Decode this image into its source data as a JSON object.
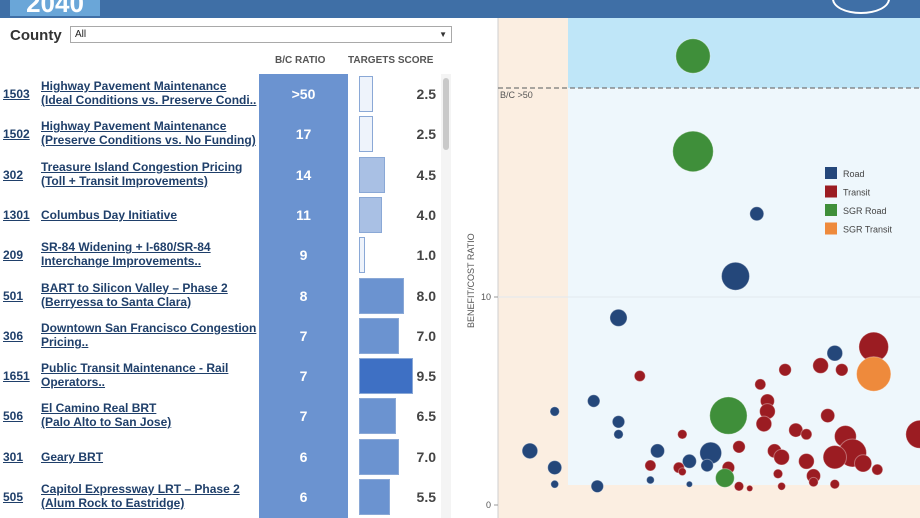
{
  "header": {
    "year_text": "2040"
  },
  "filter": {
    "label": "County",
    "value": "All"
  },
  "table": {
    "col_bc": "B/C RATIO",
    "col_targets": "TARGETS SCORE",
    "rows": [
      {
        "id": "1503",
        "line1": "Highway Pavement Maintenance",
        "line2": "(Ideal Conditions vs. Preserve Condi..",
        "bc": ">50",
        "score": "2.5",
        "score_num": 2.5
      },
      {
        "id": "1502",
        "line1": "Highway Pavement Maintenance",
        "line2": "(Preserve Conditions vs. No Funding)",
        "bc": "17",
        "score": "2.5",
        "score_num": 2.5
      },
      {
        "id": "302",
        "line1": "Treasure Island Congestion Pricing",
        "line2": "(Toll + Transit Improvements)",
        "bc": "14",
        "score": "4.5",
        "score_num": 4.5
      },
      {
        "id": "1301",
        "line1": "Columbus Day Initiative",
        "line2": "",
        "bc": "11",
        "score": "4.0",
        "score_num": 4.0
      },
      {
        "id": "209",
        "line1": "SR-84 Widening + I-680/SR-84",
        "line2": "Interchange Improvements..",
        "bc": "9",
        "score": "1.0",
        "score_num": 1.0
      },
      {
        "id": "501",
        "line1": "BART to Silicon Valley – Phase 2",
        "line2": "(Berryessa to Santa Clara)",
        "bc": "8",
        "score": "8.0",
        "score_num": 8.0
      },
      {
        "id": "306",
        "line1": "Downtown San Francisco Congestion",
        "line2": "Pricing..",
        "bc": "7",
        "score": "7.0",
        "score_num": 7.0
      },
      {
        "id": "1651",
        "line1": "Public Transit Maintenance - Rail",
        "line2": "Operators..",
        "bc": "7",
        "score": "9.5",
        "score_num": 9.5
      },
      {
        "id": "506",
        "line1": "El Camino Real BRT",
        "line2": "(Palo Alto to San Jose)",
        "bc": "7",
        "score": "6.5",
        "score_num": 6.5
      },
      {
        "id": "301",
        "line1": "Geary BRT",
        "line2": "",
        "bc": "6",
        "score": "7.0",
        "score_num": 7.0
      },
      {
        "id": "505",
        "line1": "Capitol Expressway LRT – Phase 2",
        "line2": "(Alum Rock to Eastridge)",
        "bc": "6",
        "score": "5.5",
        "score_num": 5.5
      }
    ]
  },
  "chart_data": {
    "type": "scatter",
    "ylabel": "BENEFIT/COST RATIO",
    "y_ticks": [
      "0",
      "10"
    ],
    "ylim": [
      0,
      12
    ],
    "band_label": "B/C >50",
    "legend": [
      {
        "name": "Road",
        "color": "#24477a"
      },
      {
        "name": "Transit",
        "color": "#9b1c22"
      },
      {
        "name": "SGR Road",
        "color": "#3f8f3a"
      },
      {
        "name": "SGR Transit",
        "color": "#ee8a3c"
      }
    ],
    "points": [
      {
        "cat": "SGR Road",
        "bc": ">50",
        "rank": 0.55,
        "size": 22
      },
      {
        "cat": "SGR Road",
        "bc": 17,
        "rank": 0.55,
        "size": 26
      },
      {
        "cat": "Road",
        "bc": 14,
        "rank": 0.73,
        "size": 9
      },
      {
        "cat": "Road",
        "bc": 11,
        "rank": 0.67,
        "size": 18
      },
      {
        "cat": "Road",
        "bc": 9,
        "rank": 0.34,
        "size": 11
      },
      {
        "cat": "Road",
        "bc": 7.3,
        "rank": 0.95,
        "size": 10
      },
      {
        "cat": "Transit",
        "bc": 7.6,
        "rank": 1.06,
        "size": 19
      },
      {
        "cat": "SGR Transit",
        "bc": 7,
        "rank": 1.26,
        "size": 25
      },
      {
        "cat": "SGR Transit",
        "bc": 6.3,
        "rank": 1.06,
        "size": 22
      },
      {
        "cat": "Transit",
        "bc": 6.7,
        "rank": 0.91,
        "size": 10
      },
      {
        "cat": "Transit",
        "bc": 6.2,
        "rank": 0.4,
        "size": 7
      },
      {
        "cat": "Transit",
        "bc": 6.5,
        "rank": 0.81,
        "size": 8
      },
      {
        "cat": "Transit",
        "bc": 6.5,
        "rank": 0.97,
        "size": 8
      },
      {
        "cat": "Transit",
        "bc": 5.8,
        "rank": 0.74,
        "size": 7
      },
      {
        "cat": "Road",
        "bc": 5.0,
        "rank": 0.27,
        "size": 8
      },
      {
        "cat": "Road",
        "bc": 4.5,
        "rank": 0.16,
        "size": 6
      },
      {
        "cat": "SGR Road",
        "bc": 4.3,
        "rank": 0.65,
        "size": 24
      },
      {
        "cat": "Transit",
        "bc": 5.0,
        "rank": 0.76,
        "size": 9
      },
      {
        "cat": "Transit",
        "bc": 4.5,
        "rank": 0.76,
        "size": 10
      },
      {
        "cat": "Transit",
        "bc": 4.3,
        "rank": 0.93,
        "size": 9
      },
      {
        "cat": "Road",
        "bc": 4.0,
        "rank": 0.34,
        "size": 8
      },
      {
        "cat": "Road",
        "bc": 3.4,
        "rank": 0.34,
        "size": 6
      },
      {
        "cat": "Transit",
        "bc": 3.4,
        "rank": 0.52,
        "size": 6
      },
      {
        "cat": "Transit",
        "bc": 3.9,
        "rank": 0.75,
        "size": 10
      },
      {
        "cat": "Transit",
        "bc": 3.6,
        "rank": 0.84,
        "size": 9
      },
      {
        "cat": "Transit",
        "bc": 3.4,
        "rank": 0.87,
        "size": 7
      },
      {
        "cat": "Transit",
        "bc": 3.3,
        "rank": 0.98,
        "size": 14
      },
      {
        "cat": "Transit",
        "bc": 3.4,
        "rank": 1.19,
        "size": 18
      },
      {
        "cat": "Road",
        "bc": 2.6,
        "rank": 0.09,
        "size": 10
      },
      {
        "cat": "Road",
        "bc": 2.6,
        "rank": 0.45,
        "size": 9
      },
      {
        "cat": "Road",
        "bc": 2.5,
        "rank": 0.6,
        "size": 14
      },
      {
        "cat": "Road",
        "bc": 2.1,
        "rank": 0.54,
        "size": 9
      },
      {
        "cat": "Road",
        "bc": 1.9,
        "rank": 0.59,
        "size": 8
      },
      {
        "cat": "Transit",
        "bc": 2.8,
        "rank": 0.68,
        "size": 8
      },
      {
        "cat": "Transit",
        "bc": 2.6,
        "rank": 0.78,
        "size": 9
      },
      {
        "cat": "Transit",
        "bc": 2.3,
        "rank": 0.8,
        "size": 10
      },
      {
        "cat": "Transit",
        "bc": 2.5,
        "rank": 1.0,
        "size": 18
      },
      {
        "cat": "Transit",
        "bc": 2.3,
        "rank": 0.95,
        "size": 15
      },
      {
        "cat": "Transit",
        "bc": 2.0,
        "rank": 1.03,
        "size": 11
      },
      {
        "cat": "Transit",
        "bc": 1.9,
        "rank": 0.43,
        "size": 7
      },
      {
        "cat": "Transit",
        "bc": 1.8,
        "rank": 0.51,
        "size": 7
      },
      {
        "cat": "Transit",
        "bc": 1.8,
        "rank": 0.65,
        "size": 8
      },
      {
        "cat": "Transit",
        "bc": 2.1,
        "rank": 0.87,
        "size": 10
      },
      {
        "cat": "Transit",
        "bc": 1.7,
        "rank": 1.07,
        "size": 7
      },
      {
        "cat": "Road",
        "bc": 1.8,
        "rank": 0.16,
        "size": 9
      },
      {
        "cat": "Road",
        "bc": 1.0,
        "rank": 0.16,
        "size": 5
      },
      {
        "cat": "Road",
        "bc": 0.9,
        "rank": 0.28,
        "size": 8
      },
      {
        "cat": "Road",
        "bc": 1.2,
        "rank": 0.43,
        "size": 5
      },
      {
        "cat": "Road",
        "bc": 1.0,
        "rank": 0.54,
        "size": 4
      },
      {
        "cat": "SGR Road",
        "bc": 1.3,
        "rank": 0.64,
        "size": 12
      },
      {
        "cat": "Transit",
        "bc": 1.5,
        "rank": 0.79,
        "size": 6
      },
      {
        "cat": "Transit",
        "bc": 0.9,
        "rank": 0.8,
        "size": 5
      },
      {
        "cat": "Transit",
        "bc": 1.4,
        "rank": 0.89,
        "size": 9
      },
      {
        "cat": "Transit",
        "bc": 1.1,
        "rank": 0.89,
        "size": 6
      },
      {
        "cat": "Transit",
        "bc": 1.0,
        "rank": 0.95,
        "size": 6
      },
      {
        "cat": "Transit",
        "bc": 1.6,
        "rank": 0.52,
        "size": 5
      },
      {
        "cat": "Transit",
        "bc": 0.9,
        "rank": 0.68,
        "size": 6
      },
      {
        "cat": "Transit",
        "bc": 0.8,
        "rank": 0.71,
        "size": 4
      }
    ]
  }
}
